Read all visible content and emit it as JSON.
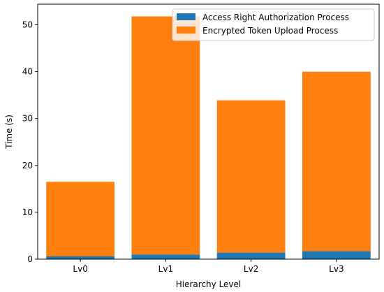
{
  "chart_data": {
    "type": "bar",
    "stacked": true,
    "categories": [
      "Lv0",
      "Lv1",
      "Lv2",
      "Lv3"
    ],
    "series": [
      {
        "name": "Access Right Authorization Process",
        "color": "#1f77b4",
        "values": [
          0.6,
          1.0,
          1.4,
          1.7
        ]
      },
      {
        "name": "Encrypted Token Upload Process",
        "color": "#ff7f0e",
        "values": [
          15.9,
          50.8,
          32.5,
          38.3
        ]
      }
    ],
    "xlabel": "Hierarchy Level",
    "ylabel": "Time (s)",
    "ylim": [
      0,
      54.4
    ],
    "yticks": [
      0,
      10,
      20,
      30,
      40,
      50
    ],
    "grid": false,
    "legend_position": "top-right"
  }
}
